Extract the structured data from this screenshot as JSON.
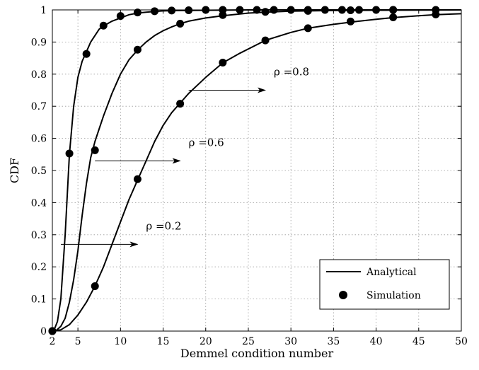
{
  "chart_data": {
    "type": "line",
    "title": "",
    "xlabel": "Demmel condition number",
    "ylabel": "CDF",
    "xlim": [
      2,
      50
    ],
    "ylim": [
      0,
      1
    ],
    "x_ticks": [
      2,
      5,
      10,
      15,
      20,
      25,
      30,
      35,
      40,
      45,
      50
    ],
    "y_ticks": [
      0,
      0.1,
      0.2,
      0.3,
      0.4,
      0.5,
      0.6,
      0.7,
      0.8,
      0.9,
      1
    ],
    "grid": true,
    "legend_position": "bottom-right",
    "legend": [
      "Analytical",
      "Simulation"
    ],
    "series": [
      {
        "style": "line",
        "x": [
          2,
          2.3,
          2.6,
          3,
          3.5,
          4,
          4.5,
          5,
          5.5,
          6,
          6.5,
          7,
          7.5,
          8,
          9,
          10,
          11,
          12,
          13,
          14,
          15,
          17,
          20,
          25,
          30,
          40,
          50
        ],
        "y": [
          0,
          0.01,
          0.03,
          0.1,
          0.3,
          0.55,
          0.7,
          0.79,
          0.84,
          0.87,
          0.9,
          0.92,
          0.94,
          0.95,
          0.965,
          0.975,
          0.985,
          0.99,
          0.993,
          0.995,
          0.997,
          0.998,
          0.999,
          1,
          1,
          1,
          1
        ]
      },
      {
        "style": "line",
        "x": [
          2,
          2.5,
          3,
          3.5,
          4,
          4.5,
          5,
          5.5,
          6,
          6.5,
          7,
          7.5,
          8,
          9,
          10,
          11,
          12,
          13,
          14,
          15,
          16,
          17,
          18,
          20,
          22,
          25,
          27,
          30,
          35,
          40,
          50
        ],
        "y": [
          0,
          0.003,
          0.015,
          0.04,
          0.09,
          0.16,
          0.25,
          0.36,
          0.46,
          0.54,
          0.59,
          0.63,
          0.67,
          0.74,
          0.8,
          0.845,
          0.875,
          0.9,
          0.92,
          0.935,
          0.947,
          0.957,
          0.965,
          0.975,
          0.982,
          0.99,
          0.993,
          0.996,
          0.998,
          0.999,
          1
        ]
      },
      {
        "style": "line",
        "x": [
          2,
          3,
          4,
          5,
          6,
          7,
          8,
          9,
          10,
          11,
          12,
          13,
          14,
          15,
          16,
          17,
          18,
          19,
          20,
          22,
          24,
          27,
          30,
          32,
          35,
          38,
          40,
          42,
          45,
          47,
          50
        ],
        "y": [
          0,
          0.004,
          0.02,
          0.05,
          0.09,
          0.14,
          0.2,
          0.27,
          0.34,
          0.41,
          0.47,
          0.53,
          0.59,
          0.64,
          0.68,
          0.71,
          0.74,
          0.765,
          0.79,
          0.835,
          0.865,
          0.905,
          0.93,
          0.943,
          0.955,
          0.965,
          0.971,
          0.976,
          0.982,
          0.985,
          0.988
        ]
      },
      {
        "name": "Simulation",
        "style": "markers",
        "x": [
          2,
          4,
          6,
          8,
          10,
          12,
          14,
          16,
          18,
          20,
          22,
          24,
          26,
          28,
          30,
          32,
          34,
          36,
          38,
          40,
          42,
          47
        ],
        "y": [
          0,
          0.553,
          0.863,
          0.951,
          0.981,
          0.992,
          0.996,
          0.998,
          0.999,
          1,
          1,
          1,
          1,
          1,
          1,
          1,
          1,
          1,
          1,
          1,
          1,
          1
        ]
      },
      {
        "name": "Simulation",
        "style": "markers",
        "x": [
          2,
          7,
          12,
          17,
          22,
          27,
          32,
          37,
          42
        ],
        "y": [
          0,
          0.563,
          0.876,
          0.957,
          0.984,
          0.994,
          0.997,
          0.999,
          1
        ]
      },
      {
        "name": "Simulation",
        "style": "markers",
        "x": [
          2,
          7,
          12,
          17,
          22,
          27,
          32,
          37,
          42,
          47
        ],
        "y": [
          0,
          0.14,
          0.473,
          0.708,
          0.836,
          0.905,
          0.943,
          0.964,
          0.977,
          0.986
        ]
      }
    ],
    "annotations": [
      {
        "text": "ρ =0.8",
        "from": [
          18,
          0.75
        ],
        "to": [
          27,
          0.75
        ]
      },
      {
        "text": "ρ =0.6",
        "from": [
          7,
          0.53
        ],
        "to": [
          17,
          0.53
        ]
      },
      {
        "text": "ρ =0.2",
        "from": [
          3,
          0.27
        ],
        "to": [
          12,
          0.27
        ]
      }
    ]
  }
}
